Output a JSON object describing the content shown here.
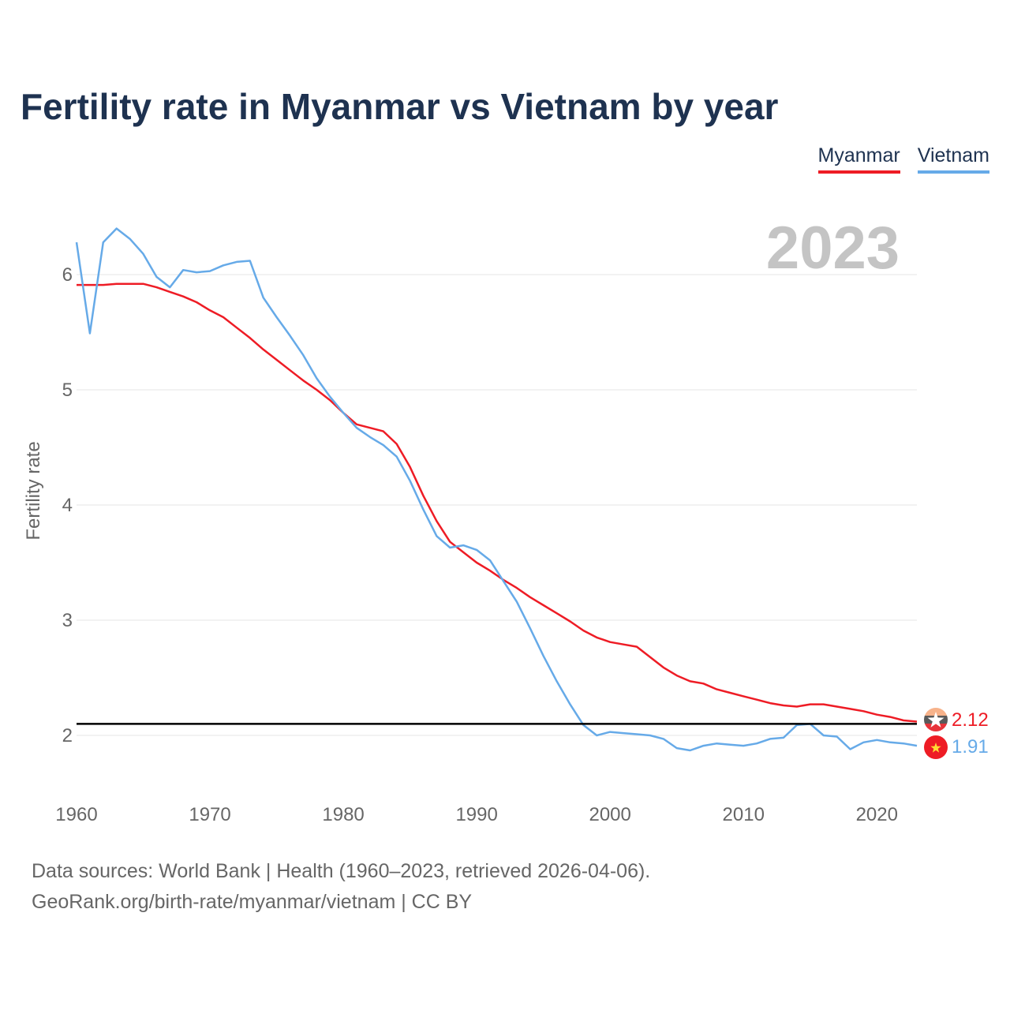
{
  "title": "Fertility rate in Myanmar vs Vietnam by year",
  "legend": [
    {
      "label": "Myanmar",
      "color": "#ee1c25"
    },
    {
      "label": "Vietnam",
      "color": "#66aae8"
    }
  ],
  "footer": {
    "line1": "Data sources: World Bank | Health (1960–2023, retrieved 2026-04-06).",
    "line2": "GeoRank.org/birth-rate/myanmar/vietnam | CC BY"
  },
  "chart_data": {
    "type": "line",
    "title": "Fertility rate in Myanmar vs Vietnam by year",
    "ylabel": "Fertility rate",
    "xlabel": "",
    "year_label": "2023",
    "xlim": [
      1960,
      2023
    ],
    "ylim": [
      1.5,
      6.6
    ],
    "x_ticks": [
      1960,
      1970,
      1980,
      1990,
      2000,
      2010,
      2020
    ],
    "y_ticks": [
      2,
      3,
      4,
      5,
      6
    ],
    "reference_line": 2.1,
    "x": [
      1960,
      1961,
      1962,
      1963,
      1964,
      1965,
      1966,
      1967,
      1968,
      1969,
      1970,
      1971,
      1972,
      1973,
      1974,
      1975,
      1976,
      1977,
      1978,
      1979,
      1980,
      1981,
      1982,
      1983,
      1984,
      1985,
      1986,
      1987,
      1988,
      1989,
      1990,
      1991,
      1992,
      1993,
      1994,
      1995,
      1996,
      1997,
      1998,
      1999,
      2000,
      2001,
      2002,
      2003,
      2004,
      2005,
      2006,
      2007,
      2008,
      2009,
      2010,
      2011,
      2012,
      2013,
      2014,
      2015,
      2016,
      2017,
      2018,
      2019,
      2020,
      2021,
      2022,
      2023
    ],
    "series": [
      {
        "name": "Myanmar",
        "color": "#ee1c25",
        "end_label": "2.12",
        "values": [
          5.91,
          5.91,
          5.91,
          5.92,
          5.92,
          5.92,
          5.89,
          5.85,
          5.81,
          5.76,
          5.69,
          5.63,
          5.54,
          5.45,
          5.35,
          5.26,
          5.17,
          5.08,
          5.0,
          4.91,
          4.8,
          4.7,
          4.67,
          4.64,
          4.53,
          4.33,
          4.08,
          3.86,
          3.68,
          3.59,
          3.5,
          3.43,
          3.35,
          3.28,
          3.2,
          3.13,
          3.06,
          2.99,
          2.91,
          2.85,
          2.81,
          2.79,
          2.77,
          2.68,
          2.59,
          2.52,
          2.47,
          2.45,
          2.4,
          2.37,
          2.34,
          2.31,
          2.28,
          2.26,
          2.25,
          2.27,
          2.27,
          2.25,
          2.23,
          2.21,
          2.18,
          2.16,
          2.13,
          2.12
        ]
      },
      {
        "name": "Vietnam",
        "color": "#66aae8",
        "end_label": "1.91",
        "values": [
          6.28,
          5.49,
          6.28,
          6.4,
          6.31,
          6.18,
          5.98,
          5.89,
          6.04,
          6.02,
          6.03,
          6.08,
          6.11,
          6.12,
          5.8,
          5.63,
          5.47,
          5.3,
          5.1,
          4.94,
          4.8,
          4.67,
          4.59,
          4.52,
          4.42,
          4.21,
          3.96,
          3.73,
          3.63,
          3.65,
          3.61,
          3.52,
          3.34,
          3.16,
          2.93,
          2.69,
          2.47,
          2.27,
          2.09,
          2.0,
          2.03,
          2.02,
          2.01,
          2.0,
          1.97,
          1.89,
          1.87,
          1.91,
          1.93,
          1.92,
          1.91,
          1.93,
          1.97,
          1.98,
          2.09,
          2.1,
          2.0,
          1.99,
          1.88,
          1.94,
          1.96,
          1.94,
          1.93,
          1.91
        ]
      }
    ]
  }
}
